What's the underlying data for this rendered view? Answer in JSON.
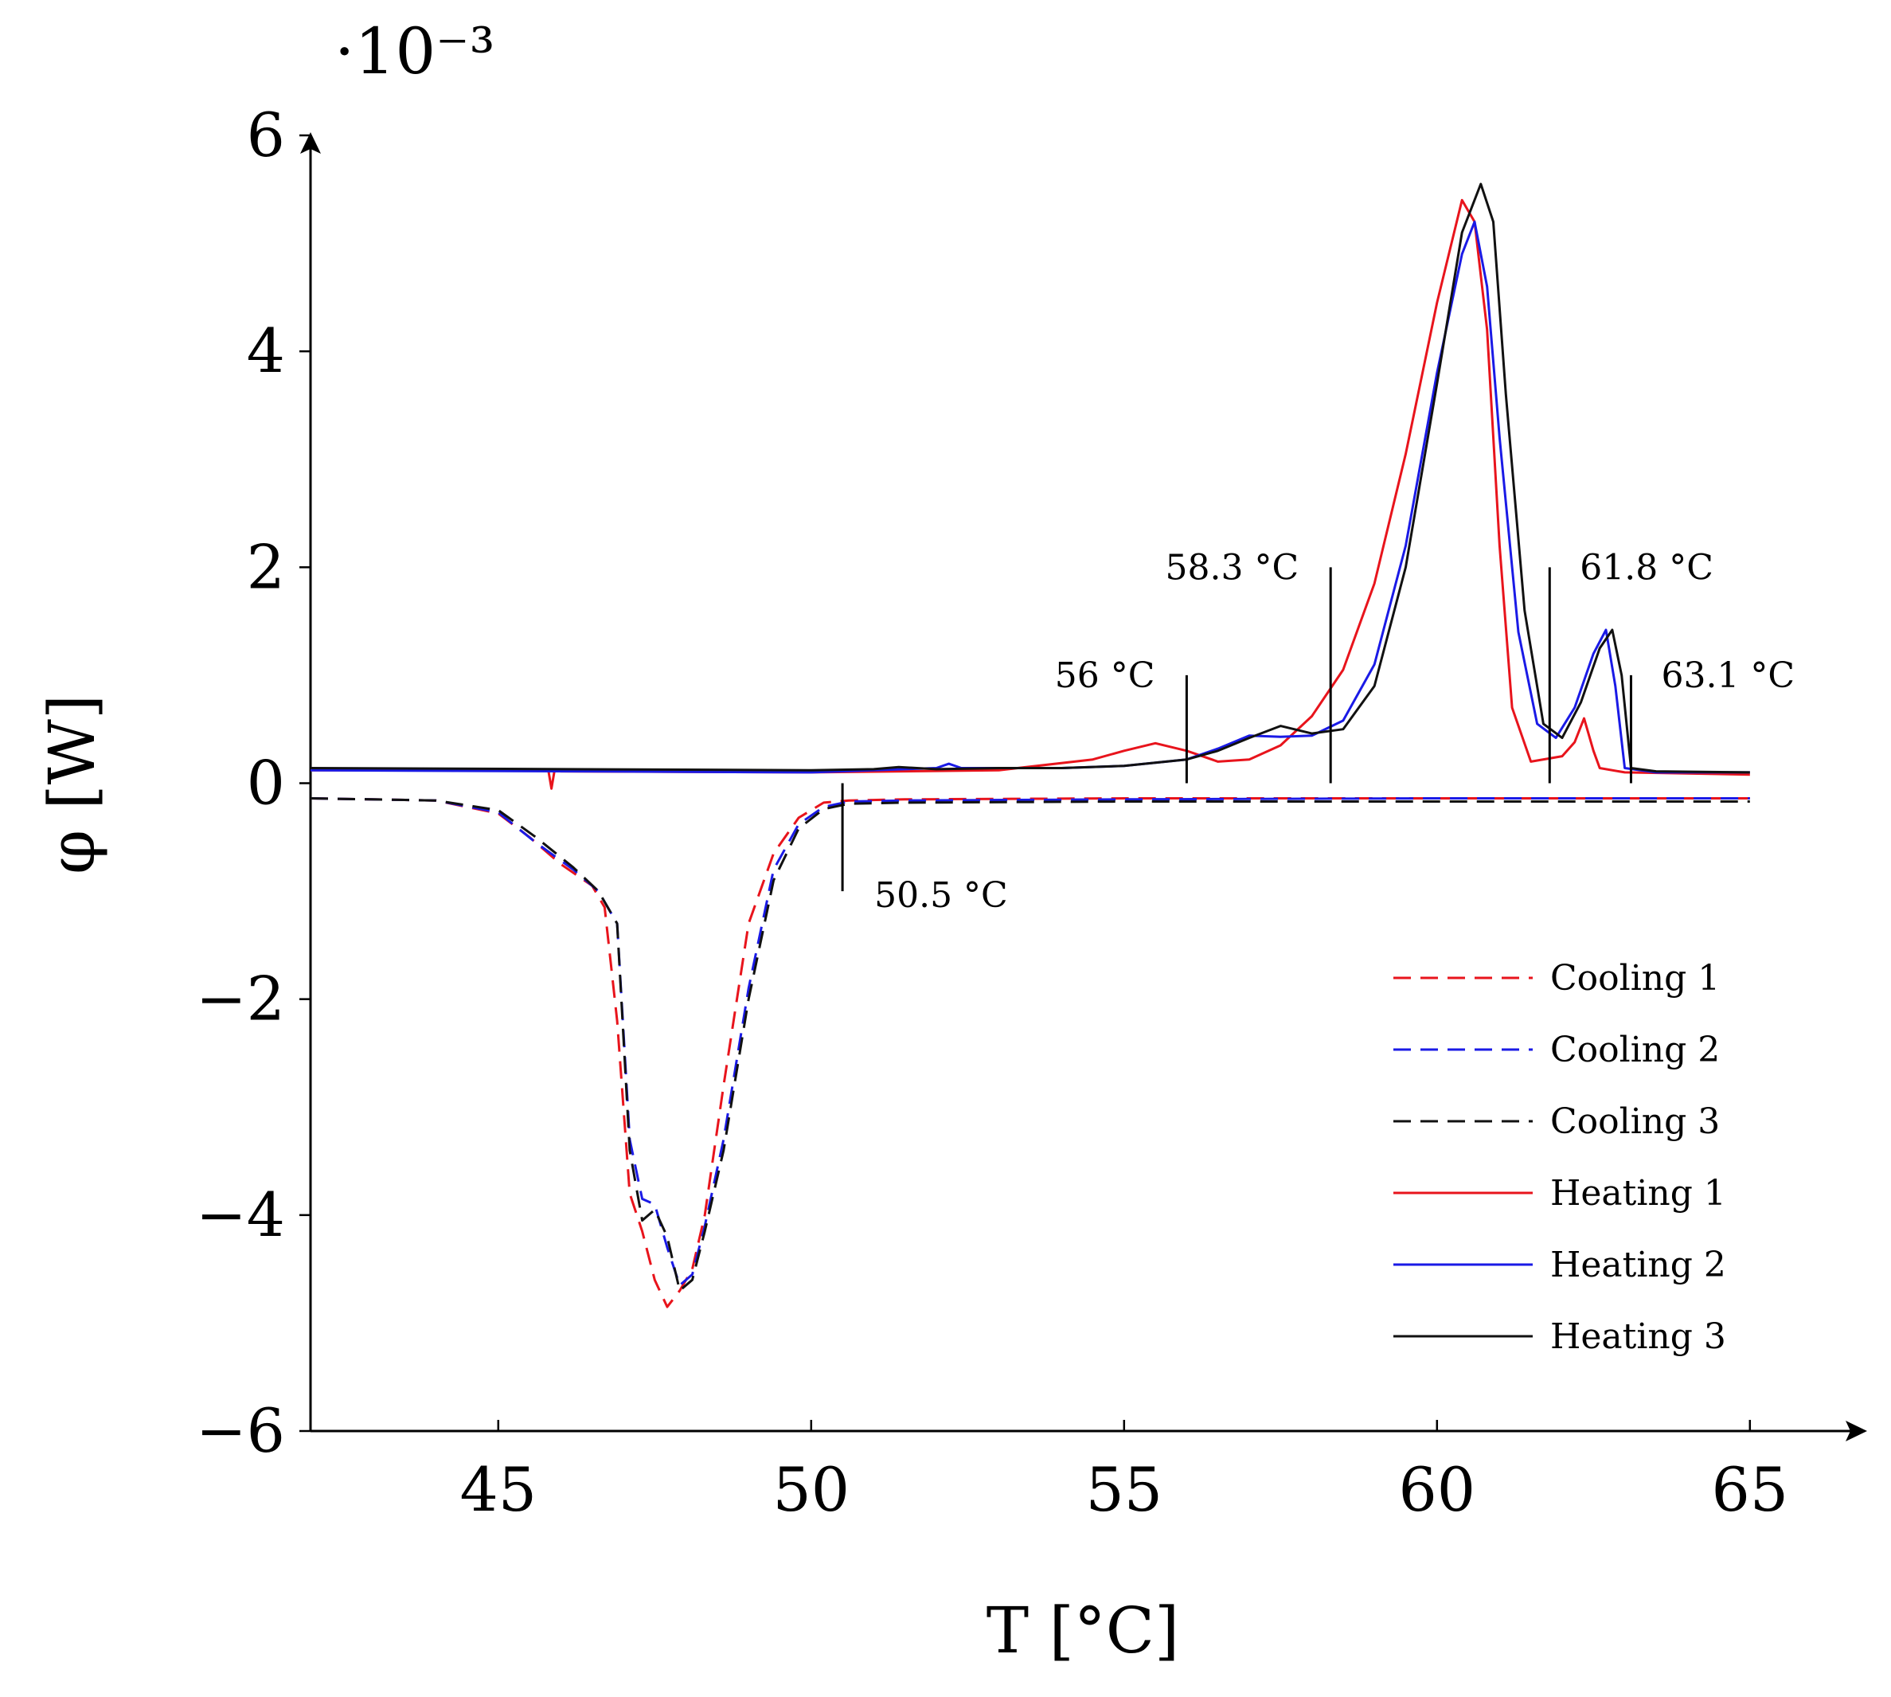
{
  "chart_data": {
    "type": "line",
    "title": "",
    "xlabel": "T [°C]",
    "ylabel": "φ [W]",
    "y_multiplier": "·10⁻³",
    "xlim": [
      42,
      67
    ],
    "ylim": [
      -6,
      6
    ],
    "xticks": [
      45,
      50,
      55,
      60,
      65
    ],
    "xtick_labels": [
      "45",
      "50",
      "55",
      "60",
      "65"
    ],
    "yticks": [
      -6,
      -4,
      -2,
      0,
      2,
      4,
      6
    ],
    "ytick_labels": [
      "−6",
      "−4",
      "−2",
      "0",
      "2",
      "4",
      "6"
    ],
    "grid": false,
    "legend_position": "bottom-right",
    "series": [
      {
        "name": "Cooling 1",
        "color": "#e8141c",
        "dash": true,
        "x": [
          42.0,
          44.0,
          45.0,
          45.5,
          46.0,
          46.5,
          46.7,
          46.9,
          47.1,
          47.3,
          47.5,
          47.7,
          47.9,
          48.1,
          48.3,
          48.6,
          49.0,
          49.4,
          49.8,
          50.2,
          50.6,
          51.5,
          55.0,
          60.0,
          65.0
        ],
        "values": [
          -0.14,
          -0.16,
          -0.28,
          -0.5,
          -0.75,
          -0.95,
          -1.15,
          -2.2,
          -3.8,
          -4.15,
          -4.6,
          -4.85,
          -4.7,
          -4.5,
          -4.0,
          -2.8,
          -1.3,
          -0.65,
          -0.32,
          -0.18,
          -0.16,
          -0.15,
          -0.14,
          -0.14,
          -0.14
        ]
      },
      {
        "name": "Cooling 2",
        "color": "#1a1ae6",
        "dash": true,
        "x": [
          42.0,
          44.0,
          45.0,
          45.6,
          46.2,
          46.6,
          46.9,
          47.1,
          47.3,
          47.5,
          47.7,
          47.9,
          48.1,
          48.3,
          48.6,
          49.0,
          49.4,
          49.8,
          50.2,
          50.6,
          51.5,
          55.0,
          60.0,
          65.0
        ],
        "values": [
          -0.14,
          -0.16,
          -0.27,
          -0.55,
          -0.8,
          -1.0,
          -1.3,
          -3.3,
          -3.85,
          -3.9,
          -4.3,
          -4.65,
          -4.55,
          -4.1,
          -3.3,
          -1.9,
          -0.8,
          -0.38,
          -0.22,
          -0.17,
          -0.16,
          -0.15,
          -0.14,
          -0.14
        ]
      },
      {
        "name": "Cooling 3",
        "color": "#111111",
        "dash": true,
        "x": [
          42.0,
          44.0,
          45.0,
          45.6,
          46.2,
          46.6,
          46.9,
          47.1,
          47.3,
          47.5,
          47.7,
          47.9,
          48.1,
          48.3,
          48.6,
          49.0,
          49.4,
          49.8,
          50.2,
          50.6,
          51.5,
          55.0,
          60.0,
          65.0
        ],
        "values": [
          -0.14,
          -0.16,
          -0.25,
          -0.5,
          -0.78,
          -1.0,
          -1.3,
          -3.4,
          -4.05,
          -3.95,
          -4.2,
          -4.7,
          -4.6,
          -4.15,
          -3.4,
          -2.0,
          -0.9,
          -0.42,
          -0.24,
          -0.19,
          -0.18,
          -0.17,
          -0.17,
          -0.17
        ]
      },
      {
        "name": "Heating 1",
        "color": "#e8141c",
        "dash": false,
        "x": [
          42.0,
          45.8,
          45.85,
          45.9,
          46.0,
          50.0,
          53.0,
          54.5,
          55.0,
          55.5,
          56.0,
          56.5,
          57.0,
          57.5,
          58.0,
          58.5,
          59.0,
          59.5,
          60.0,
          60.4,
          60.6,
          60.8,
          61.0,
          61.2,
          61.5,
          62.0,
          62.2,
          62.35,
          62.5,
          62.6,
          63.0,
          65.0
        ],
        "values": [
          0.12,
          0.12,
          -0.05,
          0.12,
          0.11,
          0.1,
          0.12,
          0.22,
          0.3,
          0.37,
          0.3,
          0.2,
          0.22,
          0.35,
          0.62,
          1.05,
          1.85,
          3.05,
          4.45,
          5.4,
          5.2,
          4.2,
          2.2,
          0.7,
          0.2,
          0.25,
          0.38,
          0.6,
          0.3,
          0.14,
          0.1,
          0.08
        ]
      },
      {
        "name": "Heating 2",
        "color": "#1a1ae6",
        "dash": false,
        "x": [
          42.0,
          50.0,
          52.0,
          52.2,
          52.4,
          54.0,
          55.0,
          56.0,
          56.5,
          57.0,
          57.5,
          58.0,
          58.5,
          59.0,
          59.5,
          60.0,
          60.4,
          60.6,
          60.8,
          61.0,
          61.3,
          61.6,
          61.9,
          62.2,
          62.5,
          62.7,
          62.85,
          63.0,
          63.5,
          65.0
        ],
        "values": [
          0.12,
          0.1,
          0.14,
          0.18,
          0.14,
          0.14,
          0.16,
          0.22,
          0.32,
          0.44,
          0.43,
          0.44,
          0.58,
          1.1,
          2.2,
          3.8,
          4.9,
          5.2,
          4.6,
          3.2,
          1.4,
          0.55,
          0.42,
          0.7,
          1.2,
          1.42,
          0.9,
          0.14,
          0.1,
          0.1
        ]
      },
      {
        "name": "Heating 3",
        "color": "#111111",
        "dash": false,
        "x": [
          42.0,
          50.0,
          51.0,
          51.4,
          52.0,
          53.0,
          54.0,
          55.0,
          56.0,
          56.5,
          57.0,
          57.5,
          58.0,
          58.5,
          59.0,
          59.5,
          60.0,
          60.4,
          60.7,
          60.9,
          61.1,
          61.4,
          61.7,
          62.0,
          62.3,
          62.6,
          62.8,
          62.95,
          63.1,
          63.5,
          65.0
        ],
        "values": [
          0.14,
          0.12,
          0.13,
          0.15,
          0.13,
          0.14,
          0.14,
          0.16,
          0.22,
          0.3,
          0.42,
          0.53,
          0.46,
          0.5,
          0.9,
          2.0,
          3.7,
          5.1,
          5.55,
          5.2,
          3.6,
          1.6,
          0.55,
          0.42,
          0.75,
          1.25,
          1.42,
          1.0,
          0.14,
          0.11,
          0.1
        ]
      }
    ],
    "annotations": [
      {
        "x": 50.5,
        "y_from": 0,
        "y_to": -1.0,
        "label": "50.5 °C",
        "side": "right-below"
      },
      {
        "x": 56,
        "y_from": 0,
        "y_to": 1.0,
        "label": "56 °C",
        "side": "left-top"
      },
      {
        "x": 58.3,
        "y_from": 0,
        "y_to": 2.0,
        "label": "58.3 °C",
        "side": "left-top"
      },
      {
        "x": 61.8,
        "y_from": 0,
        "y_to": 2.0,
        "label": "61.8 °C",
        "side": "right-top"
      },
      {
        "x": 63.1,
        "y_from": 0,
        "y_to": 1.0,
        "label": "63.1 °C",
        "side": "right-top"
      }
    ]
  }
}
